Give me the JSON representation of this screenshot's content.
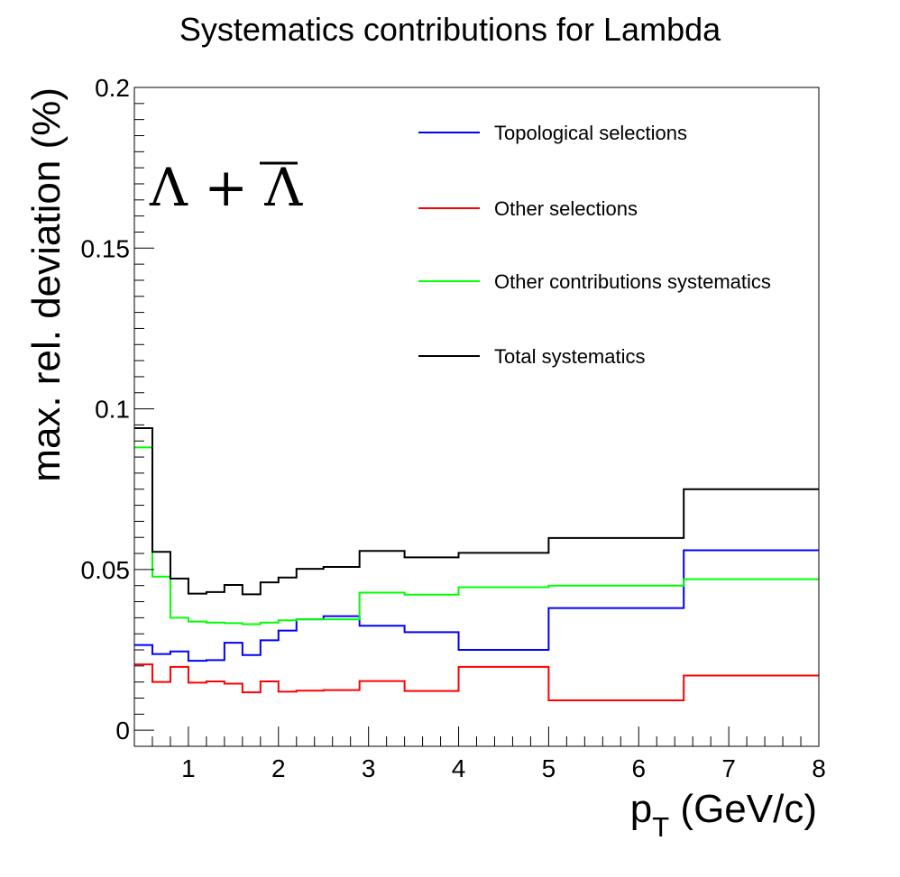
{
  "chart_data": {
    "type": "line",
    "title": "Systematics contributions for Lambda",
    "xlabel_main": "p",
    "xlabel_sub": "T",
    "xlabel_unit": " (GeV/c)",
    "ylabel": "max. rel. deviation (%)",
    "annotation": {
      "part1": "Λ + ",
      "part2": "Λ"
    },
    "xlim": [
      0.4,
      8.0
    ],
    "ylim": [
      -0.005,
      0.2
    ],
    "x_ticks": [
      1,
      2,
      3,
      4,
      5,
      6,
      7,
      8
    ],
    "x_tick_labels": [
      "1",
      "2",
      "3",
      "4",
      "5",
      "6",
      "7",
      "8"
    ],
    "y_ticks": [
      0,
      0.05,
      0.1,
      0.15,
      0.2
    ],
    "y_tick_labels": [
      "0",
      "0.05",
      "0.1",
      "0.15",
      "0.2"
    ],
    "bin_edges": [
      0.4,
      0.6,
      0.8,
      1.0,
      1.2,
      1.4,
      1.6,
      1.8,
      2.0,
      2.2,
      2.5,
      2.9,
      3.4,
      4.0,
      5.0,
      6.5,
      8.0
    ],
    "series": [
      {
        "name": "Topological selections",
        "color": "#0000ff",
        "values": [
          0.0265,
          0.0237,
          0.0245,
          0.0216,
          0.0218,
          0.0272,
          0.0234,
          0.028,
          0.031,
          0.0345,
          0.0355,
          0.0325,
          0.0305,
          0.025,
          0.038,
          0.056
        ]
      },
      {
        "name": "Other selections",
        "color": "#ff0000",
        "values": [
          0.0205,
          0.015,
          0.0197,
          0.0148,
          0.0152,
          0.0145,
          0.0118,
          0.0152,
          0.012,
          0.0123,
          0.0125,
          0.0153,
          0.0122,
          0.0197,
          0.0093,
          0.017
        ]
      },
      {
        "name": "Other contributions systematics",
        "color": "#00ff00",
        "values": [
          0.088,
          0.0478,
          0.035,
          0.0338,
          0.0335,
          0.0333,
          0.033,
          0.0335,
          0.0342,
          0.0345,
          0.0345,
          0.0428,
          0.0422,
          0.0445,
          0.045,
          0.047
        ]
      },
      {
        "name": "Total systematics",
        "color": "#000000",
        "values": [
          0.094,
          0.0555,
          0.0472,
          0.0425,
          0.043,
          0.0452,
          0.0423,
          0.046,
          0.0475,
          0.0502,
          0.0508,
          0.0558,
          0.0538,
          0.0552,
          0.0598,
          0.075
        ]
      }
    ],
    "grid": false,
    "legend_position": "top-right"
  }
}
